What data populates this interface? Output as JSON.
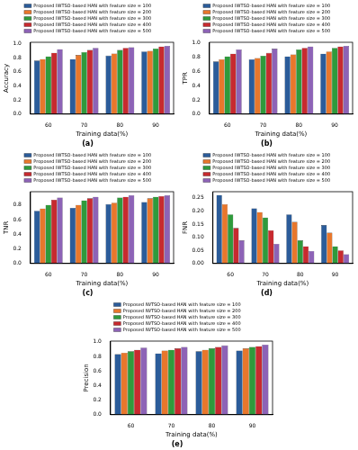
{
  "chart_data": [
    {
      "type": "bar",
      "title": "(a)",
      "x_label": "Training data(%)",
      "y_label": "Accuracy",
      "categories": [
        "60",
        "70",
        "80",
        "90"
      ],
      "series": [
        {
          "name": "Proposed IWTSO-based HAN with feature size = 100",
          "color": "#2b5c9a",
          "values": [
            0.76,
            0.78,
            0.83,
            0.89
          ]
        },
        {
          "name": "Proposed IWTSO-based HAN with feature size = 200",
          "color": "#e8772c",
          "values": [
            0.78,
            0.84,
            0.86,
            0.9
          ]
        },
        {
          "name": "Proposed IWTSO-based HAN with feature size = 300",
          "color": "#2f9a3c",
          "values": [
            0.82,
            0.88,
            0.91,
            0.93
          ]
        },
        {
          "name": "Proposed IWTSO-based HAN with feature size = 400",
          "color": "#c72a2f",
          "values": [
            0.87,
            0.91,
            0.94,
            0.96
          ]
        },
        {
          "name": "Proposed IWTSO-based HAN with feature size = 500",
          "color": "#8d63b6",
          "values": [
            0.92,
            0.94,
            0.95,
            0.97
          ]
        }
      ],
      "ylim": [
        0,
        1.02
      ],
      "yticks": [
        {
          "value": 0,
          "label": "0.0"
        },
        0.2,
        0.4,
        0.6,
        0.8,
        {
          "value": 1,
          "label": "1.0"
        }
      ],
      "grid": false,
      "legend": "top"
    },
    {
      "type": "bar",
      "title": "(b)",
      "x_label": "Training data(%)",
      "y_label": "TPR",
      "categories": [
        "60",
        "70",
        "80",
        "90"
      ],
      "series": [
        {
          "name": "Proposed IWTSO-based HAN with feature size = 100",
          "color": "#2b5c9a",
          "values": [
            0.74,
            0.77,
            0.81,
            0.85
          ]
        },
        {
          "name": "Proposed IWTSO-based HAN with feature size = 200",
          "color": "#e8772c",
          "values": [
            0.77,
            0.79,
            0.84,
            0.88
          ]
        },
        {
          "name": "Proposed IWTSO-based HAN with feature size = 300",
          "color": "#2f9a3c",
          "values": [
            0.81,
            0.82,
            0.91,
            0.93
          ]
        },
        {
          "name": "Proposed IWTSO-based HAN with feature size = 400",
          "color": "#c72a2f",
          "values": [
            0.85,
            0.86,
            0.93,
            0.95
          ]
        },
        {
          "name": "Proposed IWTSO-based HAN with feature size = 500",
          "color": "#8d63b6",
          "values": [
            0.91,
            0.92,
            0.95,
            0.96
          ]
        }
      ],
      "ylim": [
        0,
        1.01
      ],
      "yticks": [
        {
          "value": 0,
          "label": "0.0"
        },
        0.2,
        0.4,
        0.6,
        0.8,
        {
          "value": 1,
          "label": "1.0"
        }
      ],
      "grid": false,
      "legend": "top"
    },
    {
      "type": "bar",
      "title": "(c)",
      "x_label": "Training data(%)",
      "y_label": "TNR",
      "categories": [
        "60",
        "70",
        "80",
        "90"
      ],
      "series": [
        {
          "name": "Proposed IWTSO-based HAN with feature size = 100",
          "color": "#2b5c9a",
          "values": [
            0.72,
            0.76,
            0.81,
            0.84
          ]
        },
        {
          "name": "Proposed IWTSO-based HAN with feature size = 200",
          "color": "#e8772c",
          "values": [
            0.75,
            0.8,
            0.83,
            0.89
          ]
        },
        {
          "name": "Proposed IWTSO-based HAN with feature size = 300",
          "color": "#2f9a3c",
          "values": [
            0.8,
            0.86,
            0.9,
            0.91
          ]
        },
        {
          "name": "Proposed IWTSO-based HAN with feature size = 400",
          "color": "#c72a2f",
          "values": [
            0.87,
            0.89,
            0.91,
            0.92
          ]
        },
        {
          "name": "Proposed IWTSO-based HAN with feature size = 500",
          "color": "#8d63b6",
          "values": [
            0.9,
            0.91,
            0.93,
            0.93
          ]
        }
      ],
      "ylim": [
        0,
        0.98
      ],
      "yticks": [
        {
          "value": 0,
          "label": "0.0"
        },
        0.2,
        0.4,
        0.6,
        0.8
      ],
      "grid": false,
      "legend": "top"
    },
    {
      "type": "bar",
      "title": "(d)",
      "x_label": "Training data(%)",
      "y_label": "FNR",
      "categories": [
        "60",
        "70",
        "80",
        "90"
      ],
      "series": [
        {
          "name": "Proposed IWTSO-based HAN with feature size = 100",
          "color": "#2b5c9a",
          "values": [
            0.26,
            0.21,
            0.187,
            0.146
          ]
        },
        {
          "name": "Proposed IWTSO-based HAN with feature size = 200",
          "color": "#e8772c",
          "values": [
            0.225,
            0.195,
            0.158,
            0.117
          ]
        },
        {
          "name": "Proposed IWTSO-based HAN with feature size = 300",
          "color": "#2f9a3c",
          "values": [
            0.187,
            0.175,
            0.088,
            0.065
          ]
        },
        {
          "name": "Proposed IWTSO-based HAN with feature size = 400",
          "color": "#c72a2f",
          "values": [
            0.135,
            0.126,
            0.065,
            0.05
          ]
        },
        {
          "name": "Proposed IWTSO-based HAN with feature size = 500",
          "color": "#8d63b6",
          "values": [
            0.088,
            0.075,
            0.047,
            0.035
          ]
        }
      ],
      "ylim": [
        0,
        0.273
      ],
      "yticks": [
        {
          "value": 0,
          "label": "0.00"
        },
        0.05,
        {
          "value": 0.1,
          "label": "0.10"
        },
        0.15,
        {
          "value": 0.2,
          "label": "0.20"
        },
        0.25
      ],
      "grid": false,
      "legend": "top"
    },
    {
      "type": "bar",
      "title": "(e)",
      "x_label": "Training data(%)",
      "y_label": "Precision",
      "categories": [
        "60",
        "70",
        "80",
        "90"
      ],
      "series": [
        {
          "name": "Proposed IWTSO-based HAN with feature size = 100",
          "color": "#2b5c9a",
          "values": [
            0.83,
            0.84,
            0.87,
            0.88
          ]
        },
        {
          "name": "Proposed IWTSO-based HAN with feature size = 200",
          "color": "#e8772c",
          "values": [
            0.85,
            0.88,
            0.89,
            0.91
          ]
        },
        {
          "name": "Proposed IWTSO-based HAN with feature size = 300",
          "color": "#2f9a3c",
          "values": [
            0.87,
            0.89,
            0.91,
            0.93
          ]
        },
        {
          "name": "Proposed IWTSO-based HAN with feature size = 400",
          "color": "#c72a2f",
          "values": [
            0.89,
            0.91,
            0.93,
            0.94
          ]
        },
        {
          "name": "Proposed IWTSO-based HAN with feature size = 500",
          "color": "#8d63b6",
          "values": [
            0.92,
            0.93,
            0.95,
            0.96
          ]
        }
      ],
      "ylim": [
        0,
        1.01
      ],
      "yticks": [
        {
          "value": 0,
          "label": "0.0"
        },
        0.2,
        0.4,
        0.6,
        0.8,
        {
          "value": 1,
          "label": "1.0"
        }
      ],
      "grid": false,
      "legend": "top"
    }
  ]
}
